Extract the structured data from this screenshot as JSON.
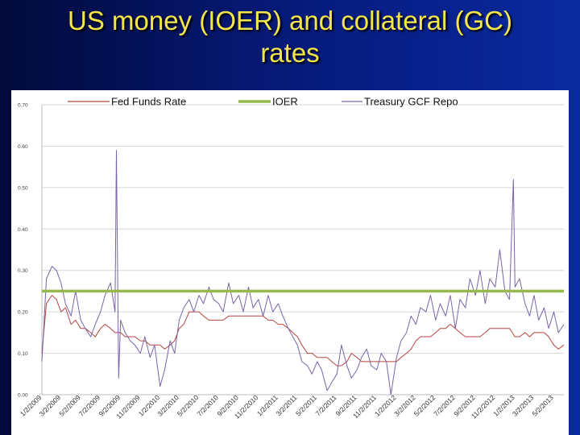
{
  "slide": {
    "title_line1": "US money (IOER) and collateral (GC)",
    "title_line2": "rates"
  },
  "colors": {
    "background": "#061a7a",
    "title": "#f4e64a",
    "fed_funds": "#b5453f",
    "ioer": "#96b84c",
    "gcf_repo": "#7a64a8",
    "grid": "#d6d6d6"
  },
  "chart_data": {
    "type": "line",
    "ylim": [
      0,
      0.7
    ],
    "y_ticks": [
      "0.00",
      "0.10",
      "0.20",
      "0.30",
      "0.40",
      "0.50",
      "0.60",
      "0.70"
    ],
    "x_ticks": [
      "1/2/2009",
      "3/2/2009",
      "5/2/2009",
      "7/2/2009",
      "9/2/2009",
      "11/2/2009",
      "1/2/2010",
      "3/2/2010",
      "5/2/2010",
      "7/2/2010",
      "9/2/2010",
      "11/2/2010",
      "1/2/2011",
      "3/2/2011",
      "5/2/2011",
      "7/2/2011",
      "9/2/2011",
      "11/2/2011",
      "1/2/2012",
      "3/2/2012",
      "5/2/2012",
      "7/2/2012",
      "9/2/2012",
      "11/2/2012",
      "1/2/2013",
      "3/2/2013",
      "5/2/2013"
    ],
    "grid": "horizontal",
    "legend_position": "top",
    "series": [
      {
        "name": "Fed Funds Rate",
        "color": "#b5453f",
        "x": [
          "1/2/2009",
          "1/16/2009",
          "2/2/2009",
          "2/16/2009",
          "3/2/2009",
          "3/16/2009",
          "4/2/2009",
          "4/16/2009",
          "5/2/2009",
          "5/16/2009",
          "6/2/2009",
          "6/16/2009",
          "7/2/2009",
          "7/16/2009",
          "8/2/2009",
          "8/16/2009",
          "9/2/2009",
          "9/16/2009",
          "10/2/2009",
          "10/16/2009",
          "11/2/2009",
          "11/16/2009",
          "12/2/2009",
          "12/16/2009",
          "1/2/2010",
          "1/16/2010",
          "2/2/2010",
          "2/16/2010",
          "3/2/2010",
          "3/16/2010",
          "4/2/2010",
          "4/16/2010",
          "5/2/2010",
          "5/16/2010",
          "6/2/2010",
          "6/16/2010",
          "7/2/2010",
          "7/16/2010",
          "8/2/2010",
          "8/16/2010",
          "9/2/2010",
          "9/16/2010",
          "10/2/2010",
          "10/16/2010",
          "11/2/2010",
          "11/16/2010",
          "12/2/2010",
          "12/16/2010",
          "1/2/2011",
          "1/16/2011",
          "2/2/2011",
          "2/16/2011",
          "3/2/2011",
          "3/16/2011",
          "4/2/2011",
          "4/16/2011",
          "5/2/2011",
          "5/16/2011",
          "6/2/2011",
          "6/16/2011",
          "7/2/2011",
          "7/16/2011",
          "8/2/2011",
          "8/16/2011",
          "9/2/2011",
          "9/16/2011",
          "10/2/2011",
          "10/16/2011",
          "11/2/2011",
          "11/16/2011",
          "12/2/2011",
          "12/16/2011",
          "1/2/2012",
          "1/16/2012",
          "2/2/2012",
          "2/16/2012",
          "3/2/2012",
          "3/16/2012",
          "4/2/2012",
          "4/16/2012",
          "5/2/2012",
          "5/16/2012",
          "6/2/2012",
          "6/16/2012",
          "7/2/2012",
          "7/16/2012",
          "8/2/2012",
          "8/16/2012",
          "9/2/2012",
          "9/16/2012",
          "10/2/2012",
          "10/16/2012",
          "11/2/2012",
          "11/16/2012",
          "12/2/2012",
          "12/16/2012",
          "1/2/2013",
          "1/16/2013",
          "2/2/2013",
          "2/16/2013",
          "3/2/2013",
          "3/16/2013",
          "4/2/2013",
          "4/16/2013",
          "5/2/2013",
          "5/16/2013",
          "6/2/2013"
        ],
        "values": [
          0.1,
          0.22,
          0.24,
          0.23,
          0.2,
          0.21,
          0.17,
          0.18,
          0.16,
          0.16,
          0.15,
          0.14,
          0.16,
          0.17,
          0.16,
          0.15,
          0.15,
          0.14,
          0.14,
          0.14,
          0.13,
          0.13,
          0.12,
          0.12,
          0.12,
          0.11,
          0.12,
          0.13,
          0.16,
          0.17,
          0.2,
          0.2,
          0.2,
          0.19,
          0.18,
          0.18,
          0.18,
          0.18,
          0.19,
          0.19,
          0.19,
          0.19,
          0.19,
          0.19,
          0.19,
          0.19,
          0.18,
          0.18,
          0.17,
          0.17,
          0.16,
          0.15,
          0.14,
          0.12,
          0.1,
          0.1,
          0.09,
          0.09,
          0.09,
          0.08,
          0.07,
          0.07,
          0.08,
          0.1,
          0.09,
          0.08,
          0.08,
          0.08,
          0.08,
          0.08,
          0.08,
          0.08,
          0.08,
          0.09,
          0.1,
          0.11,
          0.13,
          0.14,
          0.14,
          0.14,
          0.15,
          0.16,
          0.16,
          0.17,
          0.16,
          0.15,
          0.14,
          0.14,
          0.14,
          0.14,
          0.15,
          0.16,
          0.16,
          0.16,
          0.16,
          0.16,
          0.14,
          0.14,
          0.15,
          0.14,
          0.15,
          0.15,
          0.15,
          0.14,
          0.12,
          0.11,
          0.12
        ]
      },
      {
        "name": "IOER",
        "color": "#96b84c",
        "x": [
          "1/2/2009",
          "6/2/2013"
        ],
        "values": [
          0.25,
          0.25
        ]
      },
      {
        "name": "Treasury GCF Repo",
        "color": "#7a64a8",
        "x": [
          "1/2/2009",
          "1/16/2009",
          "2/2/2009",
          "2/16/2009",
          "3/2/2009",
          "3/16/2009",
          "4/2/2009",
          "4/16/2009",
          "5/2/2009",
          "5/16/2009",
          "6/2/2009",
          "6/16/2009",
          "7/2/2009",
          "7/16/2009",
          "8/2/2009",
          "8/16/2009",
          "8/20/2009",
          "8/27/2009",
          "9/2/2009",
          "9/16/2009",
          "10/2/2009",
          "10/16/2009",
          "11/2/2009",
          "11/16/2009",
          "12/2/2009",
          "12/16/2009",
          "1/2/2010",
          "1/16/2010",
          "2/2/2010",
          "2/16/2010",
          "3/2/2010",
          "3/16/2010",
          "4/2/2010",
          "4/16/2010",
          "5/2/2010",
          "5/16/2010",
          "6/2/2010",
          "6/16/2010",
          "7/2/2010",
          "7/16/2010",
          "8/2/2010",
          "8/16/2010",
          "9/2/2010",
          "9/16/2010",
          "10/2/2010",
          "10/16/2010",
          "11/2/2010",
          "11/16/2010",
          "12/2/2010",
          "12/16/2010",
          "1/2/2011",
          "1/16/2011",
          "2/2/2011",
          "2/16/2011",
          "3/2/2011",
          "3/16/2011",
          "4/2/2011",
          "4/16/2011",
          "5/2/2011",
          "5/16/2011",
          "6/2/2011",
          "6/16/2011",
          "7/2/2011",
          "7/16/2011",
          "8/2/2011",
          "8/16/2011",
          "9/2/2011",
          "9/16/2011",
          "10/2/2011",
          "10/16/2011",
          "11/2/2011",
          "11/16/2011",
          "12/2/2011",
          "12/16/2011",
          "1/2/2012",
          "1/16/2012",
          "2/2/2012",
          "2/16/2012",
          "3/2/2012",
          "3/16/2012",
          "4/2/2012",
          "4/16/2012",
          "5/2/2012",
          "5/16/2012",
          "6/2/2012",
          "6/16/2012",
          "7/2/2012",
          "7/16/2012",
          "8/2/2012",
          "8/16/2012",
          "9/2/2012",
          "9/16/2012",
          "10/2/2012",
          "10/16/2012",
          "11/2/2012",
          "11/16/2012",
          "12/2/2012",
          "12/16/2012",
          "12/28/2012",
          "1/2/2013",
          "1/16/2013",
          "2/2/2013",
          "2/16/2013",
          "3/2/2013",
          "3/16/2013",
          "4/2/2013",
          "4/16/2013",
          "5/2/2013",
          "5/16/2013",
          "6/2/2013"
        ],
        "values": [
          0.08,
          0.28,
          0.31,
          0.3,
          0.27,
          0.22,
          0.19,
          0.25,
          0.18,
          0.16,
          0.14,
          0.17,
          0.2,
          0.24,
          0.27,
          0.2,
          0.59,
          0.04,
          0.18,
          0.15,
          0.13,
          0.12,
          0.1,
          0.14,
          0.09,
          0.12,
          0.02,
          0.06,
          0.13,
          0.1,
          0.18,
          0.21,
          0.23,
          0.2,
          0.24,
          0.22,
          0.26,
          0.23,
          0.22,
          0.2,
          0.27,
          0.22,
          0.24,
          0.2,
          0.26,
          0.21,
          0.23,
          0.19,
          0.24,
          0.2,
          0.22,
          0.19,
          0.16,
          0.14,
          0.12,
          0.08,
          0.07,
          0.05,
          0.08,
          0.06,
          0.01,
          0.03,
          0.05,
          0.12,
          0.07,
          0.04,
          0.06,
          0.09,
          0.11,
          0.07,
          0.06,
          0.1,
          0.08,
          0.0,
          0.09,
          0.13,
          0.15,
          0.19,
          0.17,
          0.21,
          0.2,
          0.24,
          0.18,
          0.22,
          0.19,
          0.24,
          0.16,
          0.23,
          0.21,
          0.28,
          0.24,
          0.3,
          0.22,
          0.28,
          0.26,
          0.35,
          0.25,
          0.23,
          0.52,
          0.26,
          0.28,
          0.22,
          0.19,
          0.24,
          0.18,
          0.21,
          0.16,
          0.2,
          0.15,
          0.17
        ]
      }
    ]
  }
}
